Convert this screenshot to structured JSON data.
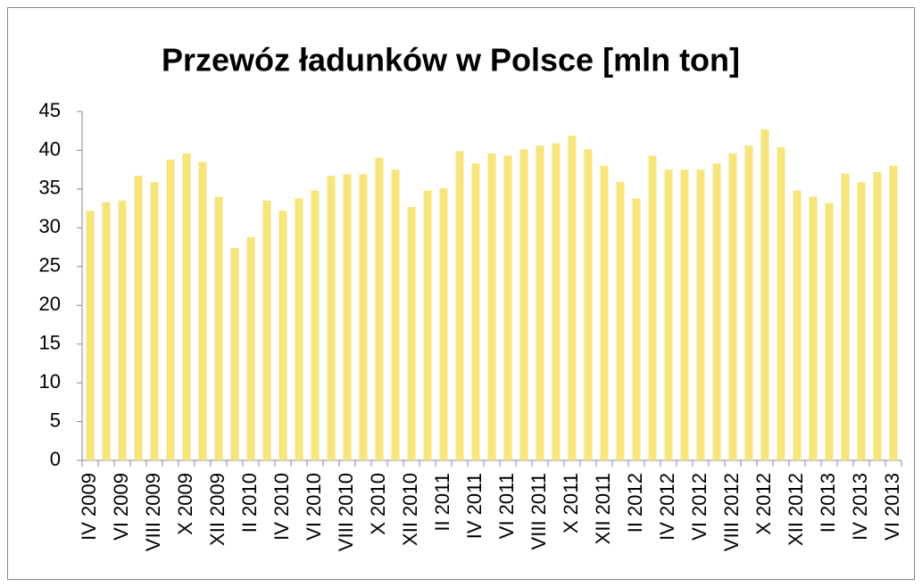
{
  "chart_data": {
    "type": "bar",
    "title": "Przewóz ładunków w Polsce [mln ton]",
    "categories": [
      "IV 2009",
      null,
      "VI 2009",
      null,
      "VIII 2009",
      null,
      "X 2009",
      null,
      "XII 2009",
      null,
      "II 2010",
      null,
      "IV 2010",
      null,
      "VI 2010",
      null,
      "VIII 2010",
      null,
      "X 2010",
      null,
      "XII 2010",
      null,
      "II 2011",
      null,
      "IV 2011",
      null,
      "VI 2011",
      null,
      "VIII 2011",
      null,
      "X 2011",
      null,
      "XII 2011",
      null,
      "II 2012",
      null,
      "IV 2012",
      null,
      "VI 2012",
      null,
      "VIII 2012",
      null,
      "X 2012",
      null,
      "XII 2012",
      null,
      "II 2013",
      null,
      "IV 2013",
      null,
      "VI 2013"
    ],
    "values": [
      32.2,
      33.3,
      33.5,
      36.7,
      35.9,
      38.8,
      39.6,
      38.5,
      34.0,
      27.4,
      28.8,
      33.5,
      32.2,
      33.8,
      34.8,
      36.7,
      36.9,
      36.9,
      39.0,
      37.5,
      32.7,
      34.8,
      35.1,
      39.9,
      38.3,
      39.6,
      39.3,
      40.1,
      40.6,
      40.9,
      41.9,
      40.1,
      38.0,
      35.9,
      33.8,
      39.3,
      37.5,
      37.5,
      37.5,
      38.3,
      39.6,
      40.6,
      42.7,
      40.4,
      34.8,
      34.0,
      33.2,
      37.0,
      35.9,
      37.2,
      38.0
    ],
    "color": "#f6e47c",
    "ylim": [
      0,
      45
    ],
    "yticks": [
      0,
      5,
      10,
      15,
      20,
      25,
      30,
      35,
      40,
      45
    ],
    "grid": false
  }
}
